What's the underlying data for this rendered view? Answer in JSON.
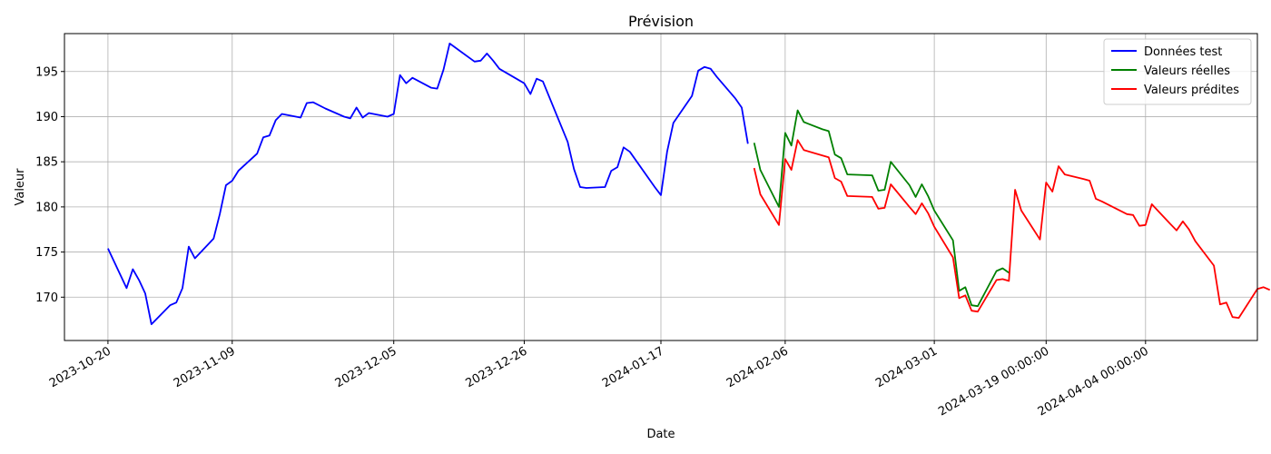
{
  "chart_data": {
    "type": "line",
    "title": "Prévision",
    "xlabel": "Date",
    "ylabel": "Valeur",
    "xlim": [
      "2023-10-13",
      "2024-04-22"
    ],
    "ylim": [
      165.2,
      199.2
    ],
    "grid": true,
    "legend_position": "top-right",
    "x_ticks": [
      {
        "date": "2023-10-20",
        "label": "2023-10-20"
      },
      {
        "date": "2023-11-09",
        "label": "2023-11-09"
      },
      {
        "date": "2023-12-05",
        "label": "2023-12-05"
      },
      {
        "date": "2023-12-26",
        "label": "2023-12-26"
      },
      {
        "date": "2024-01-17",
        "label": "2024-01-17"
      },
      {
        "date": "2024-02-06",
        "label": "2024-02-06"
      },
      {
        "date": "2024-03-01",
        "label": "2024-03-01"
      },
      {
        "date": "2024-03-19",
        "label": "2024-03-19 00:00:00"
      },
      {
        "date": "2024-04-04",
        "label": "2024-04-04 00:00:00"
      }
    ],
    "y_ticks": [
      170,
      175,
      180,
      185,
      190,
      195
    ],
    "series": [
      {
        "name": "Données test",
        "color": "#0000ff",
        "points": [
          [
            "2023-10-20",
            175.4
          ],
          [
            "2023-10-23",
            171.0
          ],
          [
            "2023-10-24",
            173.1
          ],
          [
            "2023-10-25",
            171.9
          ],
          [
            "2023-10-26",
            170.4
          ],
          [
            "2023-10-27",
            167.0
          ],
          [
            "2023-10-30",
            169.1
          ],
          [
            "2023-10-31",
            169.4
          ],
          [
            "2023-11-01",
            171.0
          ],
          [
            "2023-11-02",
            175.6
          ],
          [
            "2023-11-03",
            174.3
          ],
          [
            "2023-11-06",
            176.5
          ],
          [
            "2023-11-07",
            179.2
          ],
          [
            "2023-11-08",
            182.4
          ],
          [
            "2023-11-09",
            182.9
          ],
          [
            "2023-11-10",
            184.0
          ],
          [
            "2023-11-13",
            185.9
          ],
          [
            "2023-11-14",
            187.7
          ],
          [
            "2023-11-15",
            187.9
          ],
          [
            "2023-11-16",
            189.6
          ],
          [
            "2023-11-17",
            190.3
          ],
          [
            "2023-11-20",
            189.9
          ],
          [
            "2023-11-21",
            191.5
          ],
          [
            "2023-11-22",
            191.6
          ],
          [
            "2023-11-24",
            190.9
          ],
          [
            "2023-11-27",
            190.0
          ],
          [
            "2023-11-28",
            189.8
          ],
          [
            "2023-11-29",
            191.0
          ],
          [
            "2023-11-30",
            189.9
          ],
          [
            "2023-12-01",
            190.4
          ],
          [
            "2023-12-04",
            190.0
          ],
          [
            "2023-12-05",
            190.3
          ],
          [
            "2023-12-06",
            194.6
          ],
          [
            "2023-12-07",
            193.7
          ],
          [
            "2023-12-08",
            194.3
          ],
          [
            "2023-12-11",
            193.2
          ],
          [
            "2023-12-12",
            193.1
          ],
          [
            "2023-12-13",
            195.2
          ],
          [
            "2023-12-14",
            198.1
          ],
          [
            "2023-12-15",
            197.6
          ],
          [
            "2023-12-18",
            196.1
          ],
          [
            "2023-12-19",
            196.2
          ],
          [
            "2023-12-20",
            197.0
          ],
          [
            "2023-12-21",
            196.2
          ],
          [
            "2023-12-22",
            195.3
          ],
          [
            "2023-12-26",
            193.7
          ],
          [
            "2023-12-27",
            192.5
          ],
          [
            "2023-12-28",
            194.2
          ],
          [
            "2023-12-29",
            193.9
          ],
          [
            "2024-01-02",
            187.2
          ],
          [
            "2024-01-03",
            184.2
          ],
          [
            "2024-01-04",
            182.2
          ],
          [
            "2024-01-05",
            182.1
          ],
          [
            "2024-01-08",
            182.2
          ],
          [
            "2024-01-09",
            184.0
          ],
          [
            "2024-01-10",
            184.4
          ],
          [
            "2024-01-11",
            186.6
          ],
          [
            "2024-01-12",
            186.1
          ],
          [
            "2024-01-16",
            182.2
          ],
          [
            "2024-01-17",
            181.3
          ],
          [
            "2024-01-18",
            186.1
          ],
          [
            "2024-01-19",
            189.3
          ],
          [
            "2024-01-22",
            192.3
          ],
          [
            "2024-01-23",
            195.1
          ],
          [
            "2024-01-24",
            195.5
          ],
          [
            "2024-01-25",
            195.3
          ],
          [
            "2024-01-26",
            194.4
          ],
          [
            "2024-01-29",
            192.0
          ],
          [
            "2024-01-30",
            191.0
          ],
          [
            "2024-01-31",
            187.0
          ]
        ]
      },
      {
        "name": "Valeurs réelles",
        "color": "#008000",
        "points": [
          [
            "2024-02-01",
            187.1
          ],
          [
            "2024-02-02",
            184.1
          ],
          [
            "2024-02-05",
            180.0
          ],
          [
            "2024-02-06",
            188.2
          ],
          [
            "2024-02-07",
            186.8
          ],
          [
            "2024-02-08",
            190.7
          ],
          [
            "2024-02-09",
            189.4
          ],
          [
            "2024-02-12",
            188.6
          ],
          [
            "2024-02-13",
            188.4
          ],
          [
            "2024-02-14",
            185.8
          ],
          [
            "2024-02-15",
            185.4
          ],
          [
            "2024-02-16",
            183.6
          ],
          [
            "2024-02-20",
            183.5
          ],
          [
            "2024-02-21",
            181.8
          ],
          [
            "2024-02-22",
            181.9
          ],
          [
            "2024-02-23",
            185.0
          ],
          [
            "2024-02-26",
            182.4
          ],
          [
            "2024-02-27",
            181.1
          ],
          [
            "2024-02-28",
            182.5
          ],
          [
            "2024-02-29",
            181.2
          ],
          [
            "2024-03-01",
            179.6
          ],
          [
            "2024-03-04",
            176.3
          ],
          [
            "2024-03-05",
            170.7
          ],
          [
            "2024-03-06",
            171.1
          ],
          [
            "2024-03-07",
            169.1
          ],
          [
            "2024-03-08",
            169.0
          ],
          [
            "2024-03-11",
            172.9
          ],
          [
            "2024-03-12",
            173.2
          ],
          [
            "2024-03-13",
            172.7
          ]
        ]
      },
      {
        "name": "Valeurs prédites",
        "color": "#ff0000",
        "points": [
          [
            "2024-02-01",
            184.3
          ],
          [
            "2024-02-02",
            181.4
          ],
          [
            "2024-02-05",
            178.0
          ],
          [
            "2024-02-06",
            185.3
          ],
          [
            "2024-02-07",
            184.1
          ],
          [
            "2024-02-08",
            187.4
          ],
          [
            "2024-02-09",
            186.3
          ],
          [
            "2024-02-12",
            185.7
          ],
          [
            "2024-02-13",
            185.5
          ],
          [
            "2024-02-14",
            183.2
          ],
          [
            "2024-02-15",
            182.8
          ],
          [
            "2024-02-16",
            181.2
          ],
          [
            "2024-02-20",
            181.1
          ],
          [
            "2024-02-21",
            179.8
          ],
          [
            "2024-02-22",
            179.9
          ],
          [
            "2024-02-23",
            182.5
          ],
          [
            "2024-02-26",
            180.0
          ],
          [
            "2024-02-27",
            179.2
          ],
          [
            "2024-02-28",
            180.4
          ],
          [
            "2024-02-29",
            179.3
          ],
          [
            "2024-03-01",
            177.8
          ],
          [
            "2024-03-04",
            174.4
          ],
          [
            "2024-03-05",
            169.9
          ],
          [
            "2024-03-06",
            170.2
          ],
          [
            "2024-03-07",
            168.5
          ],
          [
            "2024-03-08",
            168.4
          ],
          [
            "2024-03-11",
            171.9
          ],
          [
            "2024-03-12",
            172.0
          ],
          [
            "2024-03-13",
            171.8
          ],
          [
            "2024-03-14",
            181.9
          ],
          [
            "2024-03-15",
            179.6
          ],
          [
            "2024-03-18",
            176.4
          ],
          [
            "2024-03-19",
            182.7
          ],
          [
            "2024-03-20",
            181.7
          ],
          [
            "2024-03-21",
            184.5
          ],
          [
            "2024-03-22",
            183.6
          ],
          [
            "2024-03-25",
            183.1
          ],
          [
            "2024-03-26",
            182.9
          ],
          [
            "2024-03-27",
            180.9
          ],
          [
            "2024-03-28",
            180.6
          ],
          [
            "2024-04-01",
            179.2
          ],
          [
            "2024-04-02",
            179.1
          ],
          [
            "2024-04-03",
            177.9
          ],
          [
            "2024-04-04",
            178.0
          ],
          [
            "2024-04-05",
            180.3
          ],
          [
            "2024-04-08",
            178.1
          ],
          [
            "2024-04-09",
            177.4
          ],
          [
            "2024-04-10",
            178.4
          ],
          [
            "2024-04-11",
            177.5
          ],
          [
            "2024-04-12",
            176.2
          ],
          [
            "2024-04-15",
            173.5
          ],
          [
            "2024-04-16",
            169.2
          ],
          [
            "2024-04-17",
            169.4
          ],
          [
            "2024-04-18",
            167.8
          ],
          [
            "2024-04-19",
            167.7
          ],
          [
            "2024-04-22",
            170.9
          ],
          [
            "2024-04-23",
            171.1
          ],
          [
            "2024-04-24",
            170.8
          ]
        ]
      }
    ]
  }
}
